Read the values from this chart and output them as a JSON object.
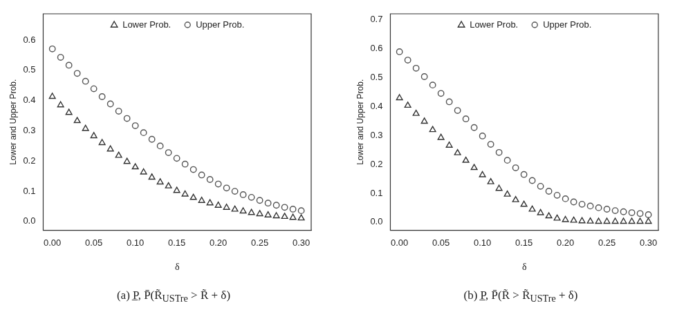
{
  "chart_data": [
    {
      "type": "scatter",
      "xlabel": "δ",
      "ylabel": "Lower and Upper Prob.",
      "annotations": [
        "(a) P̲, P̄(R̃$_{USTre}$ > R̃ + δ)"
      ],
      "x": [
        0,
        0.01,
        0.02,
        0.03,
        0.04,
        0.05,
        0.06,
        0.07,
        0.08,
        0.09,
        0.1,
        0.11,
        0.12,
        0.13,
        0.14,
        0.15,
        0.16,
        0.17,
        0.18,
        0.19,
        0.2,
        0.21,
        0.22,
        0.23,
        0.24,
        0.25,
        0.26,
        0.27,
        0.28,
        0.29,
        0.3
      ],
      "series": [
        {
          "name": "Lower Prob.",
          "color": "#333333",
          "marker": "triangle",
          "values": [
            0.413,
            0.385,
            0.36,
            0.333,
            0.307,
            0.283,
            0.26,
            0.239,
            0.218,
            0.198,
            0.18,
            0.163,
            0.146,
            0.13,
            0.117,
            0.102,
            0.09,
            0.079,
            0.069,
            0.061,
            0.053,
            0.046,
            0.04,
            0.034,
            0.029,
            0.025,
            0.021,
            0.018,
            0.016,
            0.013,
            0.011
          ]
        },
        {
          "name": "Upper Prob.",
          "color": "#555555",
          "marker": "circle",
          "values": [
            0.571,
            0.543,
            0.517,
            0.49,
            0.464,
            0.439,
            0.413,
            0.389,
            0.365,
            0.341,
            0.317,
            0.294,
            0.272,
            0.25,
            0.228,
            0.209,
            0.19,
            0.172,
            0.154,
            0.139,
            0.124,
            0.111,
            0.1,
            0.089,
            0.08,
            0.07,
            0.061,
            0.054,
            0.047,
            0.041,
            0.036
          ]
        }
      ],
      "xlim": [
        -0.011,
        0.312
      ],
      "ylim": [
        -0.029,
        0.687
      ],
      "xticks": [
        {
          "value": 0,
          "label": "0.00"
        },
        {
          "value": 0.05,
          "label": "0.05"
        },
        {
          "value": 0.1,
          "label": "0.10"
        },
        {
          "value": 0.15,
          "label": "0.15"
        },
        {
          "value": 0.2,
          "label": "0.20"
        },
        {
          "value": 0.25,
          "label": "0.25"
        },
        {
          "value": 0.3,
          "label": "0.30"
        }
      ],
      "yticks": [
        {
          "value": 0,
          "label": "0.0"
        },
        {
          "value": 0.1,
          "label": "0.1"
        },
        {
          "value": 0.2,
          "label": "0.2"
        },
        {
          "value": 0.3,
          "label": "0.3"
        },
        {
          "value": 0.4,
          "label": "0.4"
        },
        {
          "value": 0.5,
          "label": "0.5"
        },
        {
          "value": 0.6,
          "label": "0.6"
        }
      ],
      "grid": false,
      "legend": "top"
    },
    {
      "type": "scatter",
      "xlabel": "δ",
      "ylabel": "Lower and Upper Prob.",
      "annotations": [
        "(b) P̲, P̄(R̃ > R̃$_{USTre}$ + δ)"
      ],
      "x": [
        0,
        0.01,
        0.02,
        0.03,
        0.04,
        0.05,
        0.06,
        0.07,
        0.08,
        0.09,
        0.1,
        0.11,
        0.12,
        0.13,
        0.14,
        0.15,
        0.16,
        0.17,
        0.18,
        0.19,
        0.2,
        0.21,
        0.22,
        0.23,
        0.24,
        0.25,
        0.26,
        0.27,
        0.28,
        0.29,
        0.3
      ],
      "series": [
        {
          "name": "Lower Prob.",
          "color": "#333333",
          "marker": "triangle",
          "values": [
            0.429,
            0.403,
            0.375,
            0.348,
            0.319,
            0.292,
            0.265,
            0.239,
            0.213,
            0.188,
            0.163,
            0.139,
            0.116,
            0.096,
            0.077,
            0.061,
            0.044,
            0.032,
            0.021,
            0.013,
            0.008,
            0.006,
            0.004,
            0.003,
            0.002,
            0.002,
            0.002,
            0.002,
            0.002,
            0.002,
            0.002
          ]
        },
        {
          "name": "Upper Prob.",
          "color": "#555555",
          "marker": "circle",
          "values": [
            0.589,
            0.56,
            0.532,
            0.503,
            0.474,
            0.445,
            0.416,
            0.386,
            0.357,
            0.327,
            0.298,
            0.269,
            0.241,
            0.214,
            0.188,
            0.165,
            0.144,
            0.124,
            0.107,
            0.093,
            0.081,
            0.07,
            0.062,
            0.056,
            0.05,
            0.045,
            0.04,
            0.036,
            0.033,
            0.03,
            0.026
          ]
        }
      ],
      "xlim": [
        -0.011,
        0.312
      ],
      "ylim": [
        -0.028,
        0.72
      ],
      "xticks": [
        {
          "value": 0,
          "label": "0.00"
        },
        {
          "value": 0.05,
          "label": "0.05"
        },
        {
          "value": 0.1,
          "label": "0.10"
        },
        {
          "value": 0.15,
          "label": "0.15"
        },
        {
          "value": 0.2,
          "label": "0.20"
        },
        {
          "value": 0.25,
          "label": "0.25"
        },
        {
          "value": 0.3,
          "label": "0.30"
        }
      ],
      "yticks": [
        {
          "value": 0,
          "label": "0.0"
        },
        {
          "value": 0.1,
          "label": "0.1"
        },
        {
          "value": 0.2,
          "label": "0.2"
        },
        {
          "value": 0.3,
          "label": "0.3"
        },
        {
          "value": 0.4,
          "label": "0.4"
        },
        {
          "value": 0.5,
          "label": "0.5"
        },
        {
          "value": 0.6,
          "label": "0.6"
        },
        {
          "value": 0.7,
          "label": "0.7"
        }
      ],
      "grid": false,
      "legend": "top"
    }
  ]
}
